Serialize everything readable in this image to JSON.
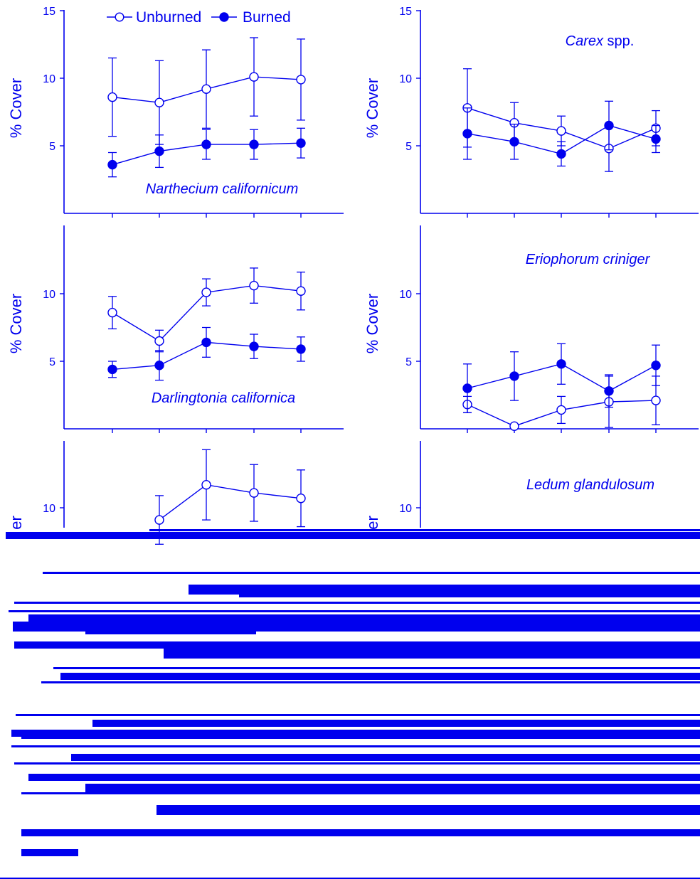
{
  "colors": {
    "ink": "#0000ee",
    "background": "#ffffff"
  },
  "legend": {
    "open_label": "Unburned",
    "filled_label": "Burned"
  },
  "chart_data": [
    {
      "type": "line",
      "title": "Narthecium californicum",
      "title_style": "italic",
      "ylabel": "% Cover",
      "ylim": [
        0,
        15
      ],
      "yticks": [
        5,
        10,
        15
      ],
      "x": [
        1,
        2,
        3,
        4,
        5
      ],
      "series": [
        {
          "name": "Unburned",
          "marker": "open",
          "values": [
            8.6,
            8.2,
            9.2,
            10.1,
            9.9
          ],
          "error": [
            2.9,
            3.1,
            2.9,
            2.9,
            3.0
          ]
        },
        {
          "name": "Burned",
          "marker": "filled",
          "values": [
            3.6,
            4.6,
            5.1,
            5.1,
            5.2
          ],
          "error": [
            0.9,
            1.2,
            1.1,
            1.1,
            1.1
          ]
        }
      ]
    },
    {
      "type": "line",
      "title": "Carex spp.",
      "title_parts": [
        {
          "text": "Carex",
          "italic": true
        },
        {
          "text": " spp.",
          "italic": false
        }
      ],
      "ylabel": "% Cover",
      "ylim": [
        0,
        15
      ],
      "yticks": [
        5,
        10,
        15
      ],
      "x": [
        1,
        2,
        3,
        4,
        5
      ],
      "series": [
        {
          "name": "Unburned",
          "marker": "open",
          "values": [
            7.8,
            6.7,
            6.1,
            4.8,
            6.3
          ],
          "error": [
            2.9,
            1.5,
            1.1,
            1.7,
            1.3
          ]
        },
        {
          "name": "Burned",
          "marker": "filled",
          "values": [
            5.9,
            5.3,
            4.4,
            6.5,
            5.5
          ],
          "error": [
            1.9,
            1.3,
            0.9,
            1.8,
            1.0
          ]
        }
      ]
    },
    {
      "type": "line",
      "title": "Darlingtonia californica",
      "title_style": "italic",
      "ylabel": "% Cover",
      "ylim": [
        0,
        15
      ],
      "yticks": [
        5,
        10
      ],
      "x": [
        1,
        2,
        3,
        4,
        5
      ],
      "series": [
        {
          "name": "Unburned",
          "marker": "open",
          "values": [
            8.6,
            6.5,
            10.1,
            10.6,
            10.2
          ],
          "error": [
            1.2,
            0.8,
            1.0,
            1.3,
            1.4
          ]
        },
        {
          "name": "Burned",
          "marker": "filled",
          "values": [
            4.4,
            4.7,
            6.4,
            6.1,
            5.9
          ],
          "error": [
            0.6,
            1.1,
            1.1,
            0.9,
            0.9
          ]
        }
      ]
    },
    {
      "type": "line",
      "title": "Eriophorum  criniger",
      "title_style": "italic",
      "ylabel": "% Cover",
      "ylim": [
        0,
        15
      ],
      "yticks": [
        5,
        10
      ],
      "x": [
        1,
        2,
        3,
        4,
        5
      ],
      "series": [
        {
          "name": "Unburned",
          "marker": "open",
          "values": [
            1.8,
            0.2,
            1.4,
            2.0,
            2.1
          ],
          "error": [
            0.6,
            0.0,
            1.0,
            1.9,
            1.8
          ]
        },
        {
          "name": "Burned",
          "marker": "filled",
          "values": [
            3.0,
            3.9,
            4.8,
            2.8,
            4.7
          ],
          "error": [
            1.8,
            1.8,
            1.5,
            1.2,
            1.5
          ]
        }
      ]
    },
    {
      "type": "line",
      "title": "",
      "ylabel": "% Cover",
      "ylabel_fragment": "er",
      "ylim": [
        0,
        15
      ],
      "yticks": [
        10
      ],
      "x": [
        1,
        2,
        3,
        4,
        5
      ],
      "partially_visible": true,
      "series": [
        {
          "name": "Unburned",
          "marker": "open",
          "values": [
            null,
            9.1,
            11.7,
            11.1,
            10.7
          ],
          "error": [
            null,
            1.8,
            2.6,
            2.1,
            2.1
          ]
        }
      ]
    },
    {
      "type": "line",
      "title": "Ledum glandulosum",
      "title_style": "italic",
      "ylabel": "% Cover",
      "ylabel_fragment": "er",
      "ylim": [
        0,
        15
      ],
      "yticks": [
        10
      ],
      "x": [
        1,
        2,
        3,
        4,
        5
      ],
      "partially_visible": true,
      "series": []
    }
  ]
}
